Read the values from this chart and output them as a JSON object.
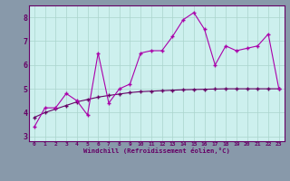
{
  "title": "",
  "xlabel": "Windchill (Refroidissement éolien,°C)",
  "ylabel": "",
  "bg_color": "#cdf0ee",
  "plot_bg_color": "#cdf0ee",
  "line1_color": "#aa00aa",
  "line2_color": "#660066",
  "line1_x": [
    0,
    1,
    2,
    3,
    4,
    5,
    6,
    7,
    8,
    9,
    10,
    11,
    12,
    13,
    14,
    15,
    16,
    17,
    18,
    19,
    20,
    21,
    22,
    23
  ],
  "line1_y": [
    3.4,
    4.2,
    4.2,
    4.8,
    4.5,
    3.9,
    6.5,
    4.4,
    5.0,
    5.2,
    6.5,
    6.6,
    6.6,
    7.2,
    7.9,
    8.2,
    7.5,
    6.0,
    6.8,
    6.6,
    6.7,
    6.8,
    7.3,
    5.0
  ],
  "line2_x": [
    0,
    1,
    2,
    3,
    4,
    5,
    6,
    7,
    8,
    9,
    10,
    11,
    12,
    13,
    14,
    15,
    16,
    17,
    18,
    19,
    20,
    21,
    22,
    23
  ],
  "line2_y": [
    3.8,
    4.0,
    4.15,
    4.3,
    4.45,
    4.55,
    4.65,
    4.72,
    4.78,
    4.84,
    4.88,
    4.9,
    4.92,
    4.94,
    4.96,
    4.97,
    4.98,
    4.99,
    5.0,
    5.0,
    5.0,
    5.0,
    5.0,
    5.0
  ],
  "xlim": [
    -0.5,
    23.5
  ],
  "ylim": [
    2.8,
    8.5
  ],
  "yticks": [
    3,
    4,
    5,
    6,
    7,
    8
  ],
  "xticks": [
    0,
    1,
    2,
    3,
    4,
    5,
    6,
    7,
    8,
    9,
    10,
    11,
    12,
    13,
    14,
    15,
    16,
    17,
    18,
    19,
    20,
    21,
    22,
    23
  ],
  "grid_color": "#aad4cc",
  "axis_color": "#660066",
  "tick_label_color": "#660066",
  "xlabel_color": "#660066",
  "markersize": 2.5,
  "linewidth1": 0.8,
  "linewidth2": 0.8,
  "outer_bg": "#8899aa"
}
